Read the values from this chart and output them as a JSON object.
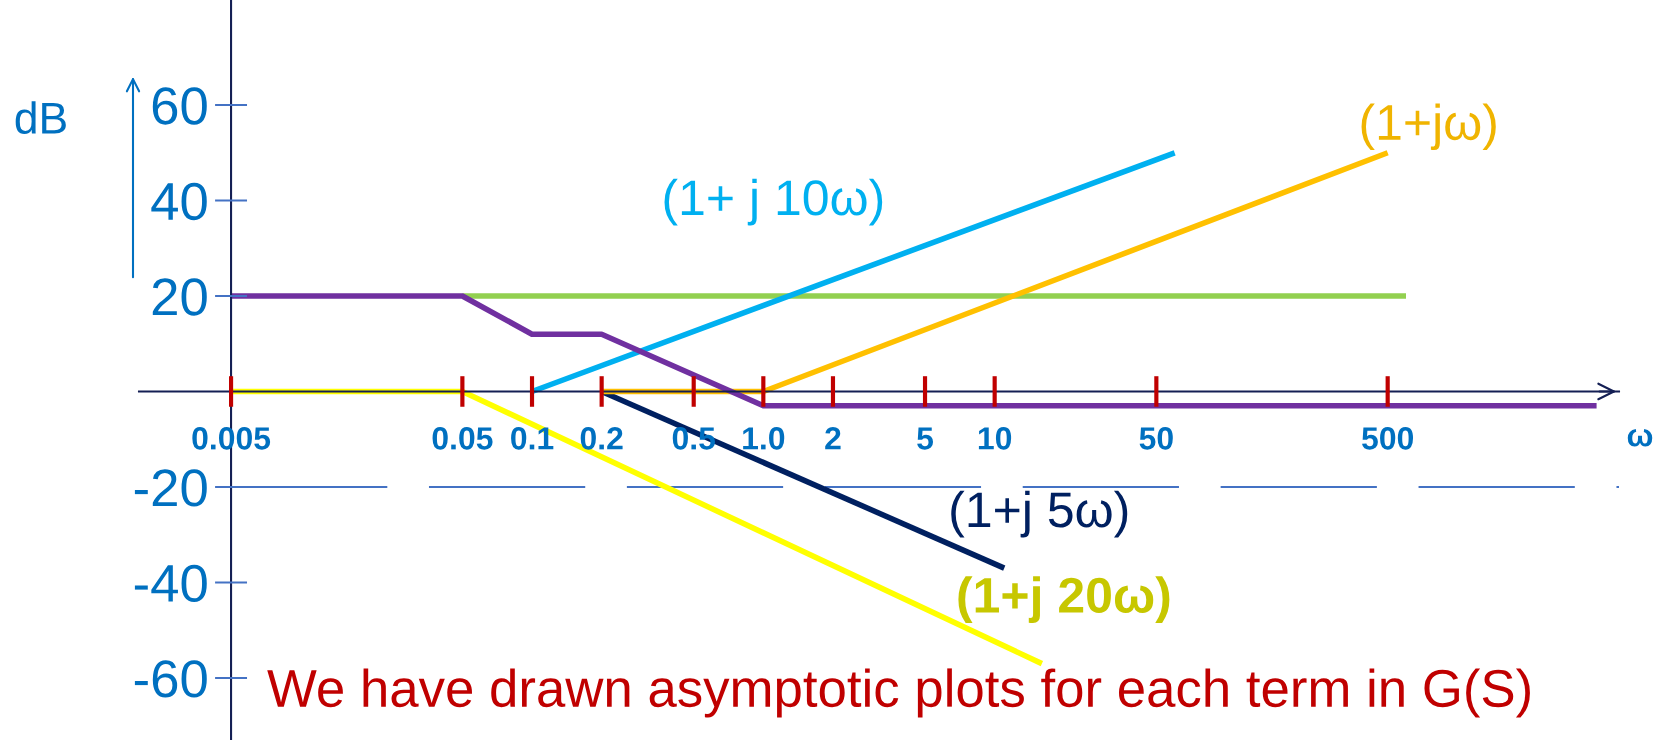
{
  "chart_data": {
    "type": "line",
    "log": "x",
    "xlabel": "ω",
    "ylabel": "dB",
    "xlim": [
      0.002,
      5000
    ],
    "xticks": [
      0.005,
      0.05,
      0.1,
      0.2,
      0.5,
      {
        "value": 1,
        "label": "1.0"
      },
      2,
      5,
      10,
      50,
      500
    ],
    "ylim": [
      -73,
      82
    ],
    "yticks": [
      -60,
      -40,
      -20,
      20,
      40,
      60
    ],
    "grid": false,
    "legend": false,
    "marker": "none",
    "line_style": "solid",
    "series": [
      {
        "color": "#92d050",
        "x": [
          0.05,
          600
        ],
        "values": [
          20,
          20
        ]
      },
      {
        "name": "(1+j 20ω)",
        "color": "#ffff00",
        "x": [
          0.005,
          0.05,
          16
        ],
        "values": [
          0,
          0,
          -57
        ]
      },
      {
        "name": "(1+j 5ω)",
        "color": "#002060",
        "x": [
          0.2,
          11
        ],
        "values": [
          0,
          -37
        ]
      },
      {
        "name": "(1+jω)",
        "color": "#ffc000",
        "x": [
          0.2,
          1,
          500
        ],
        "values": [
          0,
          0,
          50
        ]
      },
      {
        "name": "(1+ j 10ω)",
        "color": "#00b0f0",
        "x": [
          0.1,
          60
        ],
        "values": [
          0,
          50
        ]
      },
      {
        "color": "#7030a0",
        "x": [
          0.005,
          0.05,
          0.1,
          0.2,
          1,
          4000
        ],
        "values": [
          20,
          20,
          12,
          12,
          -3,
          -3
        ]
      }
    ],
    "ref_lines": [
      {
        "axis": "y",
        "value": -20,
        "color": "#4472c4",
        "line_style": "dashed"
      }
    ],
    "annotations": [
      "We have drawn asymptotic plots for each term in G(S)"
    ]
  }
}
